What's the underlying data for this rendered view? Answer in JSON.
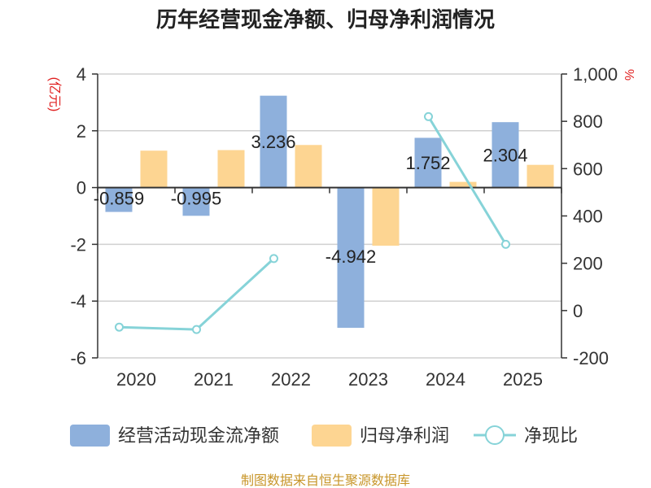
{
  "chart_data": {
    "type": "bar",
    "title": "历年经营现金净额、归母净利润情况",
    "categories": [
      "2020",
      "2021",
      "2022",
      "2023",
      "2024",
      "2025"
    ],
    "y_left": {
      "unit": "(亿元)",
      "ylim": [
        -6,
        4
      ],
      "ticks": [
        "4",
        "2",
        "0",
        "-2",
        "-4",
        "-6"
      ]
    },
    "y_right": {
      "unit": "%",
      "ylim": [
        -200,
        1000
      ],
      "ticks": [
        "1,000",
        "800",
        "600",
        "400",
        "200",
        "0",
        "-200"
      ]
    },
    "series": [
      {
        "name": "经营活动现金流净额",
        "type": "bar",
        "axis": "left",
        "color": "#8eb0dc",
        "values": [
          -0.859,
          -0.995,
          3.236,
          -4.942,
          1.752,
          2.304
        ],
        "labels": [
          "-0.859",
          "-0.995",
          "3.236",
          "-4.942",
          "1.752",
          "2.304"
        ]
      },
      {
        "name": "归母净利润",
        "type": "bar",
        "axis": "left",
        "color": "#fdd592",
        "values": [
          1.3,
          1.32,
          1.5,
          -2.05,
          0.2,
          0.8
        ]
      },
      {
        "name": "净现比",
        "type": "line",
        "axis": "right",
        "color": "#86d3d8",
        "values": [
          -70,
          -80,
          220,
          null,
          820,
          280
        ]
      }
    ],
    "grid": true,
    "legend": "bottom"
  },
  "source": "制图数据来自恒生聚源数据库"
}
